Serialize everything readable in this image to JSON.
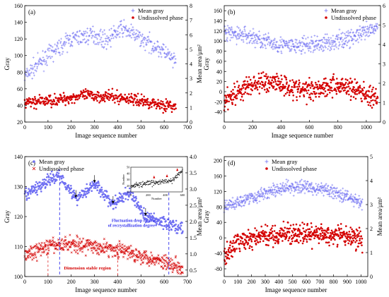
{
  "colors": {
    "gray_series": "#6f6ff2",
    "phase_series": "#d40000",
    "guide": "#3333ee",
    "red_guide": "#dd2222",
    "axis": "#000000"
  },
  "chart_data": [
    {
      "panel_label": "(a)",
      "type": "scatter",
      "xlabel": "Image sequence number",
      "ylabel_left": "Gray",
      "ylabel_right": "Mean area/μm²",
      "xlim": [
        0,
        700
      ],
      "ylim_left": [
        20,
        160
      ],
      "ylim_right": [
        0,
        8
      ],
      "xticks": [
        "0",
        "100",
        "200",
        "300",
        "400",
        "500",
        "600",
        "700"
      ],
      "yticks_left": [
        "20",
        "40",
        "60",
        "80",
        "100",
        "120",
        "140",
        "160"
      ],
      "yticks_right": [
        "0",
        "1",
        "2",
        "3",
        "4",
        "5",
        "6",
        "7",
        "8"
      ],
      "legend": [
        "Mean gray",
        "Undissolved phase"
      ],
      "legend_position": "top-right",
      "series": [
        {
          "name": "Mean gray",
          "axis": "left",
          "marker": "cross",
          "x_range": [
            0,
            650
          ],
          "trend": [
            [
              0,
              75
            ],
            [
              100,
              100
            ],
            [
              200,
              120
            ],
            [
              300,
              125
            ],
            [
              350,
              118
            ],
            [
              420,
              133
            ],
            [
              500,
              120
            ],
            [
              600,
              105
            ],
            [
              650,
              90
            ]
          ],
          "spread": 7
        },
        {
          "name": "Undissolved phase",
          "axis": "left",
          "marker": "dot",
          "x_range": [
            0,
            650
          ],
          "trend": [
            [
              0,
              43
            ],
            [
              150,
              47
            ],
            [
              250,
              52
            ],
            [
              350,
              51
            ],
            [
              450,
              48
            ],
            [
              550,
              43
            ],
            [
              650,
              38
            ]
          ],
          "spread": 5
        }
      ]
    },
    {
      "panel_label": "(b)",
      "type": "scatter",
      "xlabel": "Image sequence number",
      "ylabel_left": "Gray",
      "ylabel_right": "Mean area/μm²",
      "xlim": [
        0,
        1100
      ],
      "ylim_left": [
        -60,
        170
      ],
      "ylim_right": [
        0,
        6
      ],
      "xticks": [
        "0",
        "200",
        "400",
        "600",
        "800",
        "1000"
      ],
      "yticks_left": [
        "-40",
        "-20",
        "0",
        "20",
        "40",
        "60",
        "80",
        "100",
        "120",
        "140",
        "160"
      ],
      "yticks_right": [
        "0",
        "1",
        "2",
        "3",
        "4",
        "5",
        "6"
      ],
      "legend": [
        "Mean gray",
        "Undissolved phase"
      ],
      "legend_position": "top-right",
      "series": [
        {
          "name": "Mean gray",
          "axis": "left",
          "marker": "cross",
          "x_range": [
            0,
            1080
          ],
          "trend": [
            [
              0,
              115
            ],
            [
              150,
              112
            ],
            [
              300,
              98
            ],
            [
              450,
              90
            ],
            [
              600,
              92
            ],
            [
              800,
              100
            ],
            [
              950,
              112
            ],
            [
              1080,
              125
            ]
          ],
          "spread": 12
        },
        {
          "name": "Undissolved phase",
          "axis": "left",
          "marker": "dot",
          "x_range": [
            0,
            1080
          ],
          "trend": [
            [
              0,
              -15
            ],
            [
              200,
              15
            ],
            [
              350,
              20
            ],
            [
              550,
              2
            ],
            [
              700,
              10
            ],
            [
              850,
              12
            ],
            [
              1000,
              -5
            ],
            [
              1080,
              -20
            ]
          ],
          "spread": 15
        }
      ]
    },
    {
      "panel_label": "(c)",
      "type": "scatter",
      "xlabel": "Image sequence number",
      "ylabel_left": "Gray",
      "ylabel_right": "Mean area/μm²",
      "xlim": [
        0,
        700
      ],
      "ylim_left": [
        100,
        140
      ],
      "ylim_right": [
        0.3,
        4.0
      ],
      "xticks": [
        "0",
        "100",
        "200",
        "300",
        "400",
        "500",
        "600",
        "700"
      ],
      "yticks_left": [
        "100",
        "110",
        "120",
        "130",
        "140"
      ],
      "yticks_right": [
        "0.5",
        "1.0",
        "1.5",
        "2.0",
        "2.5",
        "3.0",
        "3.5",
        "4.0"
      ],
      "legend": [
        "Mean gray",
        "Undissolved phase"
      ],
      "legend_position": "top-left",
      "annotations": [
        "Fluctuation drop region of recrystallization degree",
        "Dimension stable region"
      ],
      "inset": {
        "xlabel": "Number",
        "ylabel": "Number",
        "xticks": [
          "0",
          "200",
          "400",
          "600"
        ],
        "yticks": [
          "10",
          "20",
          "30",
          "40",
          "50"
        ]
      },
      "series": [
        {
          "name": "Mean gray",
          "axis": "left",
          "marker": "dot",
          "x_range": [
            0,
            680
          ],
          "trend": [
            [
              0,
              127
            ],
            [
              80,
              131
            ],
            [
              150,
              134
            ],
            [
              220,
              126
            ],
            [
              300,
              131
            ],
            [
              380,
              124
            ],
            [
              450,
              128
            ],
            [
              520,
              120
            ],
            [
              600,
              118
            ],
            [
              680,
              116
            ]
          ],
          "spread": 1.5
        },
        {
          "name": "Undissolved phase",
          "axis": "left",
          "marker": "x",
          "x_range": [
            0,
            680
          ],
          "trend": [
            [
              0,
              107
            ],
            [
              100,
              110
            ],
            [
              200,
              111
            ],
            [
              300,
              110
            ],
            [
              400,
              109
            ],
            [
              500,
              107
            ],
            [
              600,
              105
            ],
            [
              680,
              103
            ]
          ],
          "spread": 1.8
        }
      ]
    },
    {
      "panel_label": "(d)",
      "type": "scatter",
      "xlabel": "Image sequence number",
      "ylabel_left": "Gray",
      "ylabel_right": "Mean area/μm²",
      "xlim": [
        0,
        1050
      ],
      "ylim_left": [
        -100,
        210
      ],
      "ylim_right": [
        0,
        5
      ],
      "xticks": [
        "0",
        "100",
        "200",
        "300",
        "400",
        "500",
        "600",
        "700",
        "800",
        "900",
        "1000"
      ],
      "yticks_left": [
        "-80",
        "-40",
        "0",
        "40",
        "80",
        "120",
        "160",
        "200"
      ],
      "yticks_right": [
        "0",
        "1",
        "2",
        "3",
        "4",
        "5"
      ],
      "legend": [
        "Mean gray",
        "Undissolved phase"
      ],
      "legend_position": "top-center",
      "series": [
        {
          "name": "Mean gray",
          "axis": "left",
          "marker": "cross",
          "x_range": [
            0,
            1010
          ],
          "trend": [
            [
              0,
              80
            ],
            [
              150,
              100
            ],
            [
              300,
              115
            ],
            [
              450,
              130
            ],
            [
              600,
              132
            ],
            [
              800,
              120
            ],
            [
              950,
              100
            ],
            [
              1010,
              85
            ]
          ],
          "spread": 12
        },
        {
          "name": "Undissolved phase",
          "axis": "left",
          "marker": "dot",
          "x_range": [
            0,
            1010
          ],
          "trend": [
            [
              0,
              -50
            ],
            [
              100,
              -10
            ],
            [
              300,
              5
            ],
            [
              500,
              10
            ],
            [
              700,
              8
            ],
            [
              900,
              5
            ],
            [
              1010,
              -5
            ]
          ],
          "spread": 18
        }
      ]
    }
  ]
}
